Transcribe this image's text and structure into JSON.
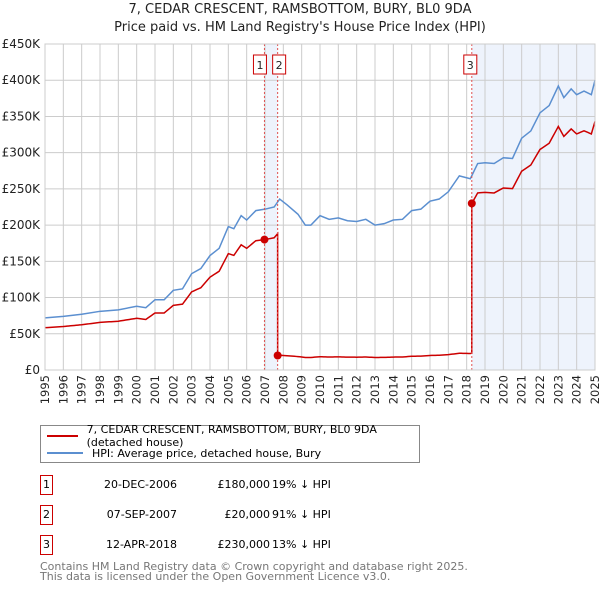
{
  "chart_data": {
    "type": "line",
    "title": "7, CEDAR CRESCENT, RAMSBOTTOM, BURY, BL0 9DA",
    "subtitle": "Price paid vs. HM Land Registry's House Price Index (HPI)",
    "ylim": [
      0,
      450000
    ],
    "xlim": [
      1995,
      2025
    ],
    "y_ticks": [
      {
        "v": 0,
        "label": "£0"
      },
      {
        "v": 50000,
        "label": "£50K"
      },
      {
        "v": 100000,
        "label": "£100K"
      },
      {
        "v": 150000,
        "label": "£150K"
      },
      {
        "v": 200000,
        "label": "£200K"
      },
      {
        "v": 250000,
        "label": "£250K"
      },
      {
        "v": 300000,
        "label": "£300K"
      },
      {
        "v": 350000,
        "label": "£350K"
      },
      {
        "v": 400000,
        "label": "£400K"
      },
      {
        "v": 450000,
        "label": "£450K"
      }
    ],
    "x_ticks": [
      "1995",
      "1996",
      "1997",
      "1998",
      "1999",
      "2000",
      "2001",
      "2002",
      "2003",
      "2004",
      "2005",
      "2006",
      "2007",
      "2008",
      "2009",
      "2010",
      "2011",
      "2012",
      "2013",
      "2014",
      "2015",
      "2016",
      "2017",
      "2018",
      "2019",
      "2020",
      "2021",
      "2022",
      "2023",
      "2024",
      "2025"
    ],
    "grid": true,
    "hpi_series": {
      "name": "HPI: Average price, detached house, Bury",
      "color": "#5b8fd0",
      "x": [
        1995,
        1996,
        1997,
        1998,
        1999,
        2000,
        2000.5,
        2001,
        2001.5,
        2002,
        2002.5,
        2003,
        2003.5,
        2004,
        2004.5,
        2005,
        2005.3,
        2005.7,
        2006,
        2006.5,
        2007,
        2007.5,
        2007.8,
        2008.2,
        2008.8,
        2009.2,
        2009.5,
        2010,
        2010.5,
        2011,
        2011.5,
        2012,
        2012.5,
        2013,
        2013.5,
        2014,
        2014.5,
        2015,
        2015.5,
        2016,
        2016.5,
        2017,
        2017.6,
        2018.2,
        2018.6,
        2019,
        2019.5,
        2020,
        2020.5,
        2021,
        2021.5,
        2022,
        2022.5,
        2023,
        2023.3,
        2023.7,
        2024,
        2024.4,
        2024.8,
        2025
      ],
      "y": [
        72000,
        74000,
        77000,
        81000,
        83000,
        88000,
        86000,
        97000,
        97000,
        110000,
        112000,
        133000,
        140000,
        158000,
        168000,
        198000,
        195000,
        213000,
        207000,
        220000,
        222000,
        225000,
        236000,
        228000,
        215000,
        200000,
        200000,
        213000,
        208000,
        210000,
        206000,
        205000,
        208000,
        200000,
        202000,
        207000,
        208000,
        220000,
        222000,
        233000,
        236000,
        246000,
        268000,
        264000,
        285000,
        286000,
        285000,
        293000,
        292000,
        320000,
        330000,
        355000,
        365000,
        392000,
        376000,
        388000,
        380000,
        385000,
        380000,
        400000
      ]
    },
    "price_series": {
      "name": "7, CEDAR CRESCENT, RAMSBOTTOM, BURY, BL0 9DA (detached house)",
      "color": "#cc0000"
    },
    "sales": [
      {
        "n": "1",
        "x": 2006.97,
        "date": "20-DEC-2006",
        "price": 180000,
        "price_label": "£180,000",
        "hpi_label": "19% ↓ HPI"
      },
      {
        "n": "2",
        "x": 2007.69,
        "date": "07-SEP-2007",
        "price": 20000,
        "price_label": "£20,000",
        "hpi_label": "91% ↓ HPI"
      },
      {
        "n": "3",
        "x": 2018.28,
        "date": "12-APR-2018",
        "price": 230000,
        "price_label": "£230,000",
        "hpi_label": "13% ↓ HPI"
      }
    ]
  },
  "legend": {
    "price": "7, CEDAR CRESCENT, RAMSBOTTOM, BURY, BL0 9DA (detached house)",
    "hpi": "HPI: Average price, detached house, Bury"
  },
  "footer": {
    "line1": "Contains HM Land Registry data © Crown copyright and database right 2025.",
    "line2": "This data is licensed under the Open Government Licence v3.0."
  }
}
